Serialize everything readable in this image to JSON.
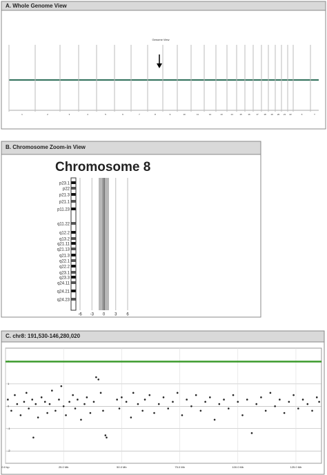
{
  "panel_a": {
    "title": "A.  Whole Genome View",
    "view_label": "Genome View",
    "chromosomes": [
      "1",
      "2",
      "3",
      "4",
      "5",
      "6",
      "7",
      "8",
      "9",
      "10",
      "11",
      "12",
      "13",
      "14",
      "15",
      "16",
      "17",
      "18",
      "19",
      "20",
      "21",
      "22",
      "X",
      "Y"
    ]
  },
  "panel_b": {
    "title": "B.  Chromosome Zoom-in View",
    "heading": "Chromosome 8",
    "bands": [
      "p23.1",
      "p22",
      "p21.3",
      "p21.1",
      "p11.23",
      "q11.22",
      "q12.2",
      "q13.2",
      "q21.11",
      "q21.13",
      "q21.3",
      "q22.1",
      "q22.2",
      "q23.1",
      "q23.3",
      "q24.11",
      "q24.21",
      "q24.23"
    ],
    "xlim": [
      -6,
      6
    ],
    "xticks": [
      -6,
      -3,
      0,
      3,
      6
    ]
  },
  "chart_data": {
    "type": "scatter",
    "title": "C.  chr8: 191,530-146,280,020",
    "xlim": [
      0,
      136
    ],
    "ylim": [
      -2.55,
      2.6
    ],
    "xticks": [
      {
        "value": 0,
        "label": "0.0 bp"
      },
      {
        "value": 25,
        "label": "25.0 Mb"
      },
      {
        "value": 50,
        "label": "50.0 Mb"
      },
      {
        "value": 75,
        "label": "75.0 Mb"
      },
      {
        "value": 100,
        "label": "100.0 Mb"
      },
      {
        "value": 125,
        "label": "125.0 Mb"
      }
    ],
    "yticks": [
      -2,
      -1,
      0,
      1,
      2
    ],
    "grid": true,
    "reference_line": 2,
    "reference_color": "#3a9a2a",
    "series": [
      {
        "color": "#222222",
        "x": [
          1,
          2.5,
          4,
          5,
          6.5,
          8,
          9,
          10,
          11.5,
          12,
          13,
          14,
          15.5,
          17,
          18,
          19,
          20,
          21.5,
          23,
          24,
          25,
          26,
          27.5,
          29,
          30,
          31,
          32.5,
          34,
          35,
          36.5,
          38,
          39,
          40,
          41,
          42,
          43,
          43.5,
          48,
          49,
          50,
          52,
          54,
          55,
          57,
          59,
          60,
          62,
          64,
          66,
          68,
          70,
          72,
          74,
          76,
          78,
          80,
          82,
          84,
          86,
          88,
          90,
          92,
          94,
          96,
          98,
          100,
          102,
          104,
          106,
          108,
          110,
          112,
          114,
          116,
          118,
          120,
          122,
          124,
          126,
          128,
          130,
          132,
          134,
          135
        ],
        "values": [
          0.3,
          -0.2,
          0.5,
          0.1,
          -0.4,
          0.2,
          0.6,
          -0.1,
          0.3,
          -1.4,
          0.1,
          -0.5,
          0.4,
          0.2,
          -0.3,
          0.1,
          0.7,
          -0.2,
          0.3,
          0.9,
          0.0,
          -0.4,
          0.2,
          0.5,
          -0.1,
          0.3,
          -0.6,
          0.1,
          0.4,
          -0.3,
          0.2,
          1.3,
          1.2,
          0.6,
          -0.2,
          -1.3,
          -1.4,
          0.3,
          -0.1,
          0.4,
          0.2,
          -0.5,
          0.6,
          0.1,
          -0.2,
          0.3,
          0.5,
          -0.3,
          0.1,
          0.4,
          -0.1,
          0.2,
          0.6,
          -0.4,
          0.3,
          0.0,
          0.5,
          -0.2,
          0.2,
          0.4,
          -0.6,
          0.1,
          0.3,
          -0.1,
          0.5,
          0.2,
          -0.4,
          0.3,
          -1.2,
          0.1,
          0.4,
          -0.2,
          0.6,
          0.0,
          0.3,
          -0.3,
          0.2,
          0.5,
          -0.1,
          0.3,
          0.1,
          -0.2,
          0.4,
          0.2
        ]
      }
    ]
  }
}
